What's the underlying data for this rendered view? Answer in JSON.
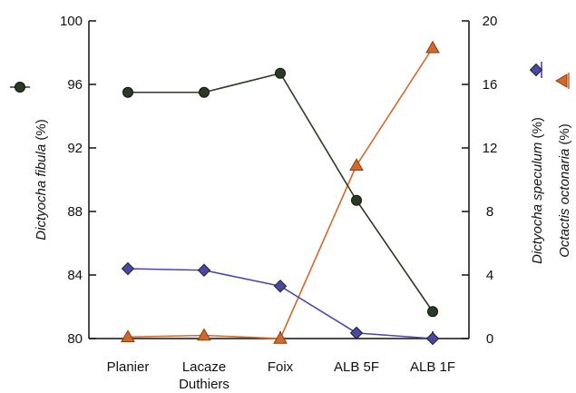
{
  "chart_data": {
    "type": "line",
    "categories": [
      "Planier",
      "Lacaze Duthiers",
      "Foix",
      "ALB 5F",
      "ALB 1F"
    ],
    "category_lines": [
      [
        "Planier"
      ],
      [
        "Lacaze",
        "Duthiers"
      ],
      [
        "Foix"
      ],
      [
        "ALB 5F"
      ],
      [
        "ALB 1F"
      ]
    ],
    "left_axis": {
      "label": "Dictyocha fibula",
      "unit": "(%)",
      "ylim": [
        80,
        100
      ],
      "ticks": [
        80,
        84,
        88,
        92,
        96,
        100
      ]
    },
    "right_axis": {
      "ylim": [
        0,
        20
      ],
      "ticks": [
        0,
        4,
        8,
        12,
        16,
        20
      ],
      "labels": [
        {
          "text": "Dictyocha speculum",
          "unit": "(%)"
        },
        {
          "text": "Octactis octonaria",
          "unit": "(%)"
        }
      ]
    },
    "series": [
      {
        "key": "fibula",
        "axis": "left",
        "marker": "circle",
        "color": "#2b3a23",
        "values": [
          95.5,
          95.5,
          96.7,
          88.7,
          81.7
        ]
      },
      {
        "key": "speculum",
        "axis": "right",
        "marker": "diamond",
        "color": "#4848a8",
        "values": [
          4.4,
          4.3,
          3.3,
          0.35,
          0.0
        ]
      },
      {
        "key": "octonaria",
        "axis": "right",
        "marker": "triangle",
        "color": "#d2692c",
        "values": [
          0.1,
          0.2,
          0.0,
          10.9,
          18.3
        ]
      }
    ],
    "grid": false
  }
}
